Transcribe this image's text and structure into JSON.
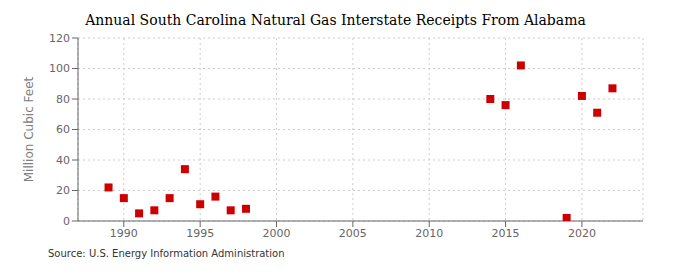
{
  "chart_data": {
    "type": "scatter",
    "title": "Annual South Carolina Natural Gas Interstate Receipts From Alabama",
    "ylabel": "Million Cubic Feet",
    "source": "Source: U.S. Energy Information Administration",
    "x": [
      1989,
      1990,
      1991,
      1992,
      1993,
      1994,
      1995,
      1996,
      1997,
      1998,
      2014,
      2015,
      2016,
      2019,
      2020,
      2021,
      2022
    ],
    "values": [
      22,
      15,
      5,
      7,
      15,
      34,
      11,
      16,
      7,
      8,
      80,
      76,
      102,
      2,
      82,
      71,
      87
    ],
    "color": "#cc0000",
    "marker": "square",
    "xlim": [
      1987,
      2024
    ],
    "ylim": [
      0,
      120
    ],
    "xticks": [
      1990,
      1995,
      2000,
      2005,
      2010,
      2015,
      2020
    ],
    "yticks": [
      0,
      20,
      40,
      60,
      80,
      100,
      120
    ],
    "grid": true
  }
}
